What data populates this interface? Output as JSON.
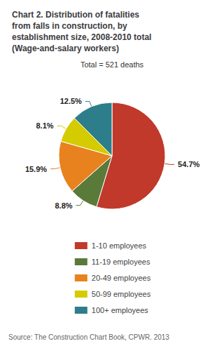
{
  "chart_data": {
    "type": "pie",
    "title": "Chart 2. Distribution of fatalities\nfrom falls in construction, by\nestablishment size, 2008-2010 total\n(Wage-and-salary workers)",
    "annotations": [
      "Total = 521 deaths",
      "Source: The Construction Chart Book, CPWR. 2013"
    ],
    "categories": [
      "1-10 employees",
      "11-19 employees",
      "20-49 employees",
      "50-99 employees",
      "100+ employees"
    ],
    "values": [
      54.7,
      8.8,
      15.9,
      8.1,
      12.5
    ],
    "value_labels": [
      "54.7%",
      "8.8%",
      "15.9%",
      "8.1%",
      "12.5%"
    ],
    "colors": [
      "#c0392b",
      "#5a7a3a",
      "#e8821e",
      "#d4cb00",
      "#2e7d8a"
    ],
    "data_labels": true,
    "legend": "bottom"
  }
}
